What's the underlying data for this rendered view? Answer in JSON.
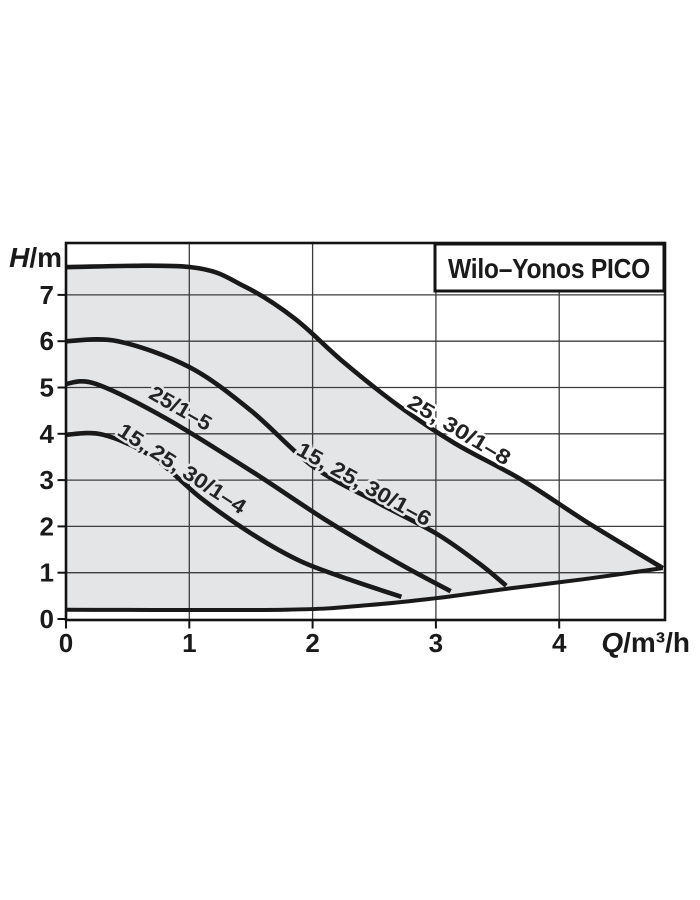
{
  "page": {
    "background": "#ffffff"
  },
  "chart_data": {
    "type": "line",
    "title": "Wilo–Yonos PICO",
    "ylabel": "H/m",
    "ylabel_italic": "H",
    "ylabel_rest": "/m",
    "xlabel": "Q/m³/h",
    "xlabel_italic": "Q",
    "xlabel_rest": "/m³/h",
    "xlim": [
      0,
      4.86
    ],
    "ylim": [
      0,
      8.12
    ],
    "xticks": [
      0,
      1,
      2,
      3,
      4
    ],
    "yticks": [
      0,
      1,
      2,
      3,
      4,
      5,
      6,
      7
    ],
    "grid": "on",
    "legend_position": "none",
    "fill_color": "#e4e5e7",
    "curve_color": "#191919",
    "grid_color": "#3d3d3d",
    "series": [
      {
        "name": "25, 30/1–8",
        "points": [
          [
            0,
            7.6
          ],
          [
            1.01,
            7.6
          ],
          [
            1.45,
            7.18
          ],
          [
            1.85,
            6.5
          ],
          [
            2.25,
            5.55
          ],
          [
            2.7,
            4.6
          ],
          [
            3.15,
            3.8
          ],
          [
            3.7,
            3.0
          ],
          [
            4.25,
            2.05
          ],
          [
            4.84,
            1.1
          ]
        ],
        "label_anchor": {
          "q": 3.16,
          "h": 3.95,
          "angle": 31,
          "length": 116
        }
      },
      {
        "name": "15, 25, 30/1–6",
        "points": [
          [
            0,
            6.0
          ],
          [
            0.42,
            6.0
          ],
          [
            1.0,
            5.44
          ],
          [
            1.5,
            4.5
          ],
          [
            2.0,
            3.3
          ],
          [
            2.5,
            2.55
          ],
          [
            3.0,
            1.85
          ],
          [
            3.35,
            1.2
          ],
          [
            3.57,
            0.72
          ]
        ],
        "label_anchor": {
          "q": 2.39,
          "h": 2.78,
          "angle": 29,
          "length": 150
        }
      },
      {
        "name": "25/1–5",
        "points": [
          [
            0,
            5.08
          ],
          [
            0.24,
            5.08
          ],
          [
            0.8,
            4.35
          ],
          [
            1.5,
            3.2
          ],
          [
            2.1,
            2.15
          ],
          [
            2.7,
            1.2
          ],
          [
            3.12,
            0.6
          ]
        ],
        "label_anchor": {
          "q": 0.9,
          "h": 4.42,
          "angle": 30,
          "length": 68
        }
      },
      {
        "name": "15, 25, 30/1–4",
        "points": [
          [
            0,
            3.98
          ],
          [
            0.3,
            3.98
          ],
          [
            0.7,
            3.5
          ],
          [
            1.1,
            2.6
          ],
          [
            1.5,
            1.85
          ],
          [
            1.9,
            1.25
          ],
          [
            2.3,
            0.85
          ],
          [
            2.72,
            0.48
          ]
        ],
        "label_anchor": {
          "q": 0.91,
          "h": 3.12,
          "angle": 33,
          "length": 148
        }
      }
    ],
    "min_envelope": [
      [
        0,
        0.2
      ],
      [
        1.78,
        0.2
      ],
      [
        2.45,
        0.3
      ],
      [
        3.0,
        0.45
      ],
      [
        3.6,
        0.66
      ],
      [
        4.2,
        0.86
      ],
      [
        4.84,
        1.1
      ]
    ]
  }
}
